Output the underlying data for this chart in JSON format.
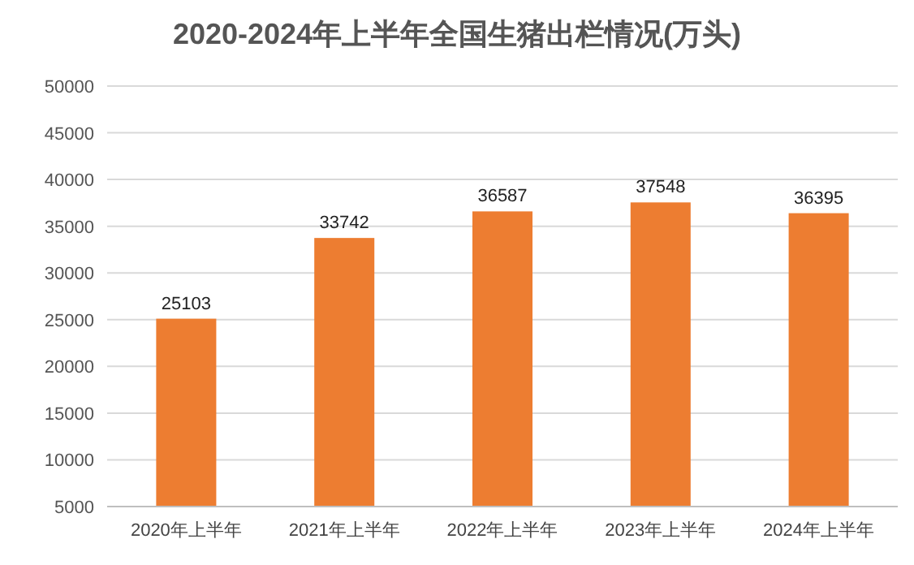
{
  "chart_data": {
    "type": "bar",
    "title": "2020-2024年上半年全国生猪出栏情况(万头)",
    "categories": [
      "2020年上半年",
      "2021年上半年",
      "2022年上半年",
      "2023年上半年",
      "2024年上半年"
    ],
    "values": [
      25103,
      33742,
      36587,
      37548,
      36395
    ],
    "color": "#ed7d31",
    "ylim": [
      5000,
      50000
    ],
    "yticks": [
      5000,
      10000,
      15000,
      20000,
      25000,
      30000,
      35000,
      40000,
      45000,
      50000
    ],
    "grid": "y",
    "data_labels": true
  }
}
